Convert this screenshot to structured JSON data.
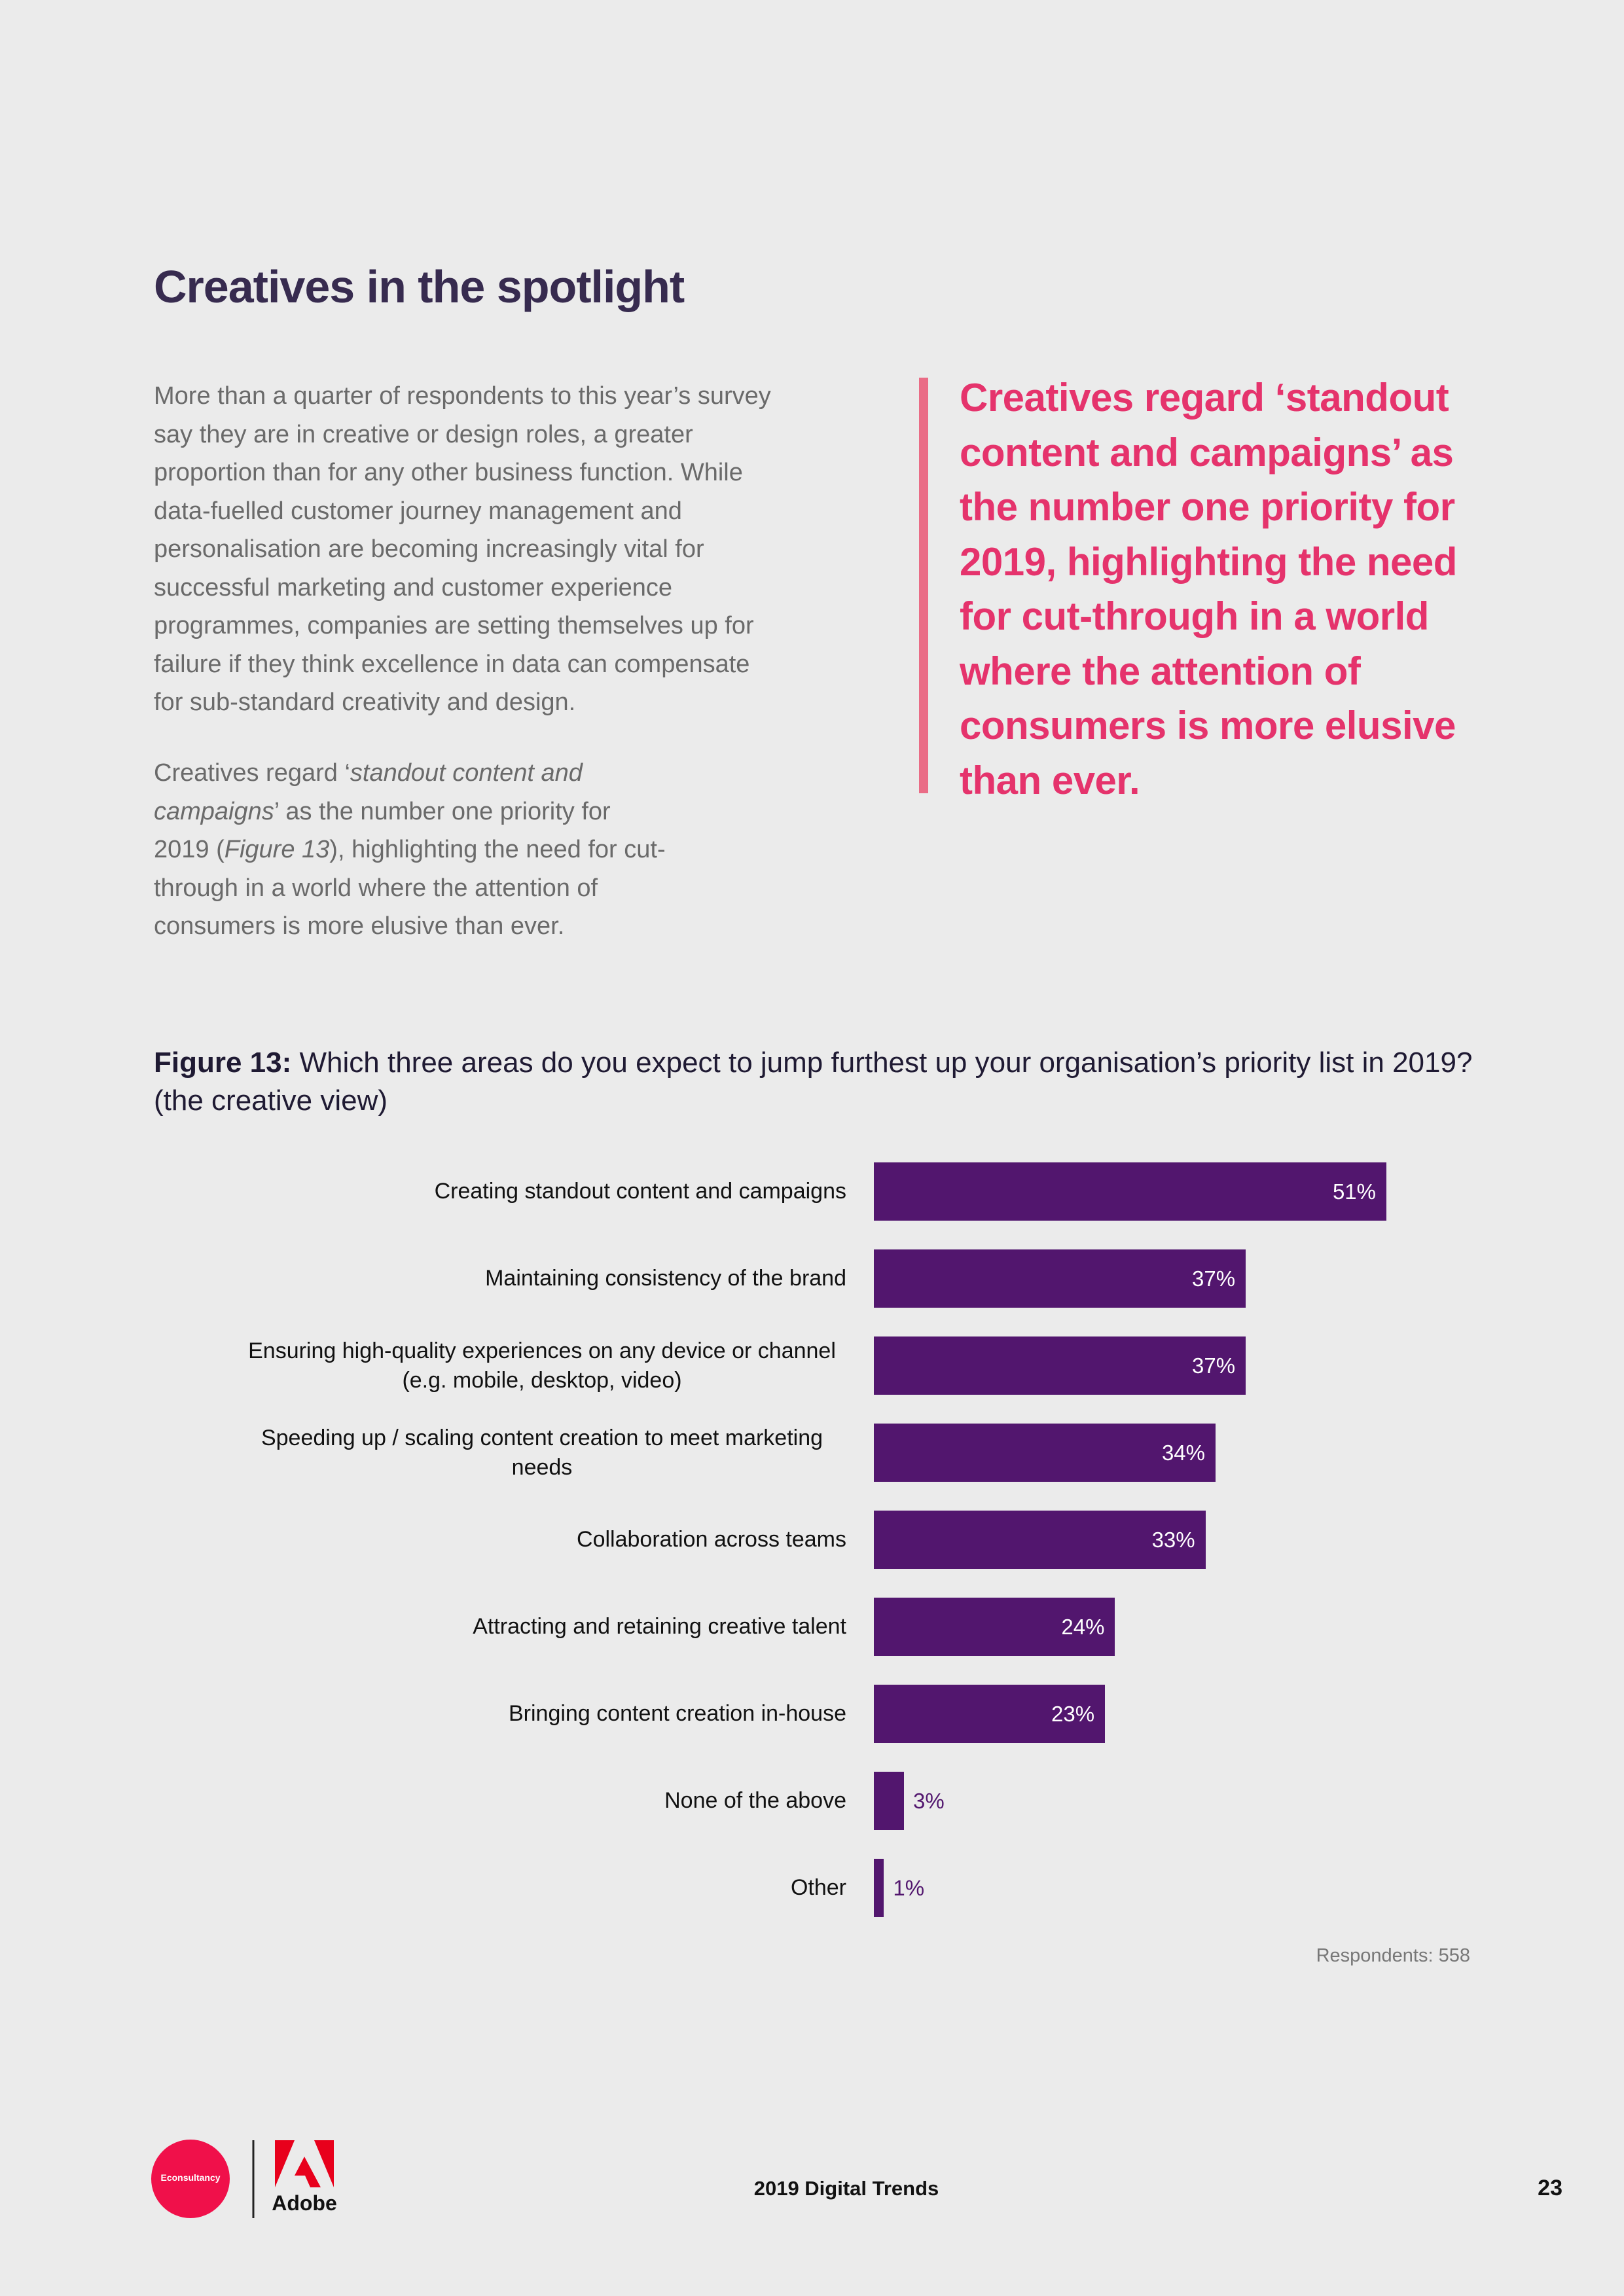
{
  "header": {
    "title": "Creatives in the spotlight"
  },
  "body": {
    "paragraph_1": "More than a quarter of respondents to this year’s survey say they are in creative or design roles, a greater proportion than for any other business function. While data-fuelled customer journey management and personalisation are becoming increasingly vital for successful marketing and customer experience programmes, companies are setting themselves up for failure if they think excellence in data can compensate for sub-standard creativity and design.",
    "paragraph_2": [
      "Creatives regard ‘",
      "standout content and campaigns",
      "’ as the number one priority for 2019 (",
      "Figure 13",
      "), highlighting the need for cut-through in a world where the attention of consumers is more elusive than ever."
    ]
  },
  "pull_quote": "Creatives regard ‘standout content and campaigns’ as the number one priority for 2019, highlighting the need for cut-through in a world where the attention of consumers is more elusive than ever.",
  "chart_data": {
    "type": "bar",
    "orientation": "horizontal",
    "figure_label": "Figure 13:",
    "title": "Which three areas do you expect to jump furthest up your organisation’s priority list in 2019? (the creative view)",
    "categories": [
      "Creating standout content and campaigns",
      "Maintaining consistency of the brand",
      "Ensuring high-quality experiences on any device or channel (e.g. mobile, desktop, video)",
      "Speeding up / scaling content creation to meet marketing needs",
      "Collaboration across teams",
      "Attracting and retaining creative talent",
      "Bringing content creation in-house",
      "None of the above",
      "Other"
    ],
    "values": [
      51,
      37,
      37,
      34,
      33,
      24,
      23,
      3,
      1
    ],
    "value_labels": [
      "51%",
      "37%",
      "37%",
      "34%",
      "33%",
      "24%",
      "23%",
      "3%",
      "1%"
    ],
    "color": "#52166e",
    "note": "Respondents: 558"
  },
  "footer": {
    "logos": [
      "Econsultancy",
      "Adobe"
    ],
    "publication": "2019 Digital Trends",
    "page_number": 23
  }
}
